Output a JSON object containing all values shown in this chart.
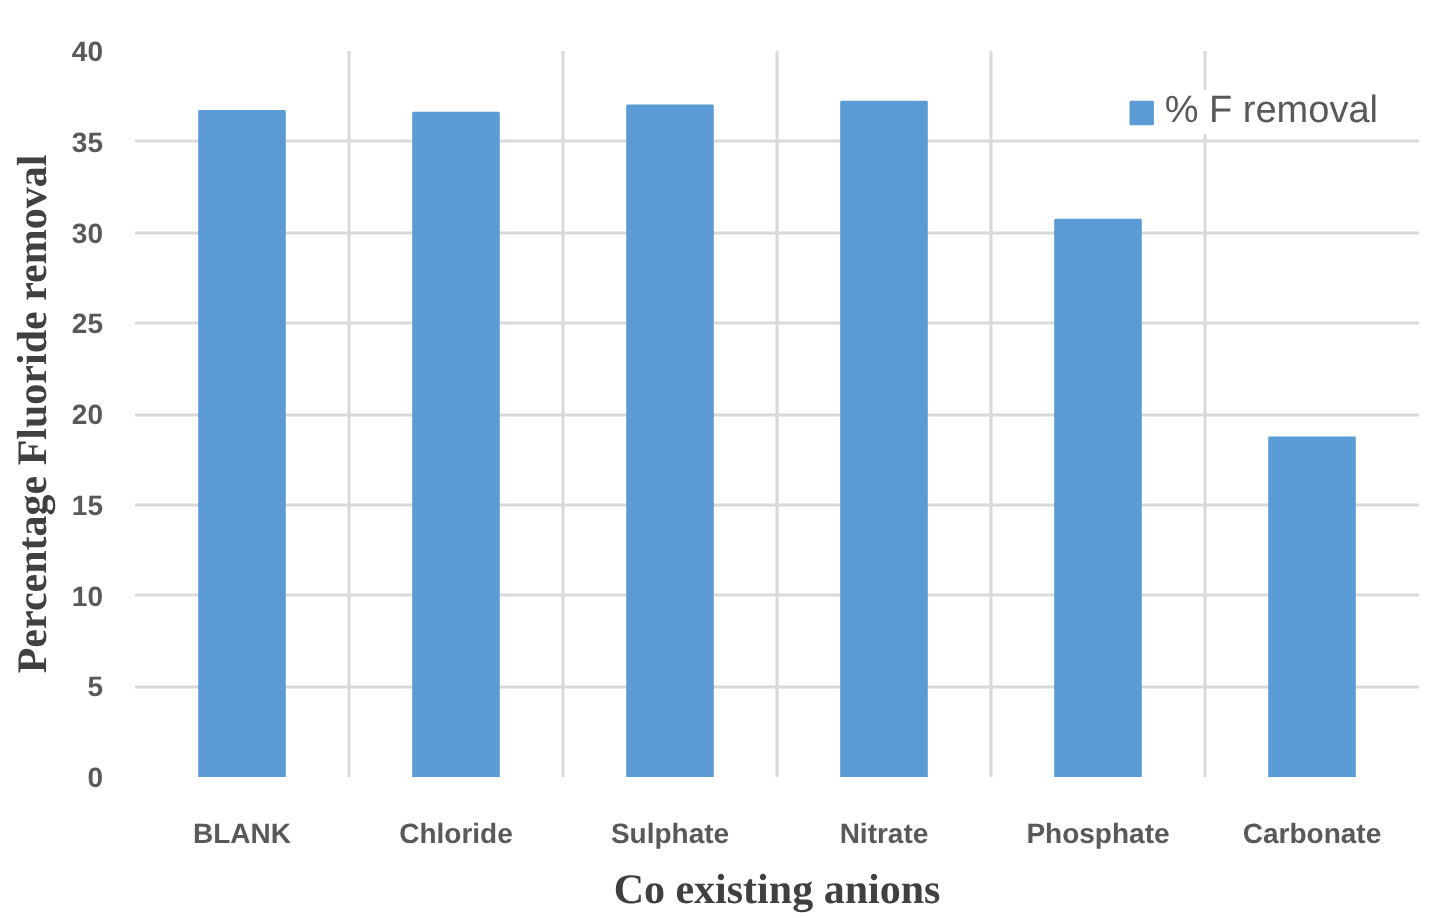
{
  "chart_data": {
    "type": "bar",
    "xlabel": "Co existing anions",
    "ylabel": "Percentage Fluoride removal",
    "categories": [
      "BLANK",
      "Chloride",
      "Sulphate",
      "Nitrate",
      "Phosphate",
      "Carbonate"
    ],
    "series": [
      {
        "name": "% F removal",
        "color": "#5b9bd5",
        "values": [
          36.7,
          36.6,
          37.0,
          37.2,
          30.7,
          18.7
        ]
      }
    ],
    "ylim": [
      0,
      40
    ],
    "yticks": [
      0,
      5,
      10,
      15,
      20,
      25,
      30,
      35,
      40
    ],
    "grid": true,
    "legend": "top right"
  }
}
